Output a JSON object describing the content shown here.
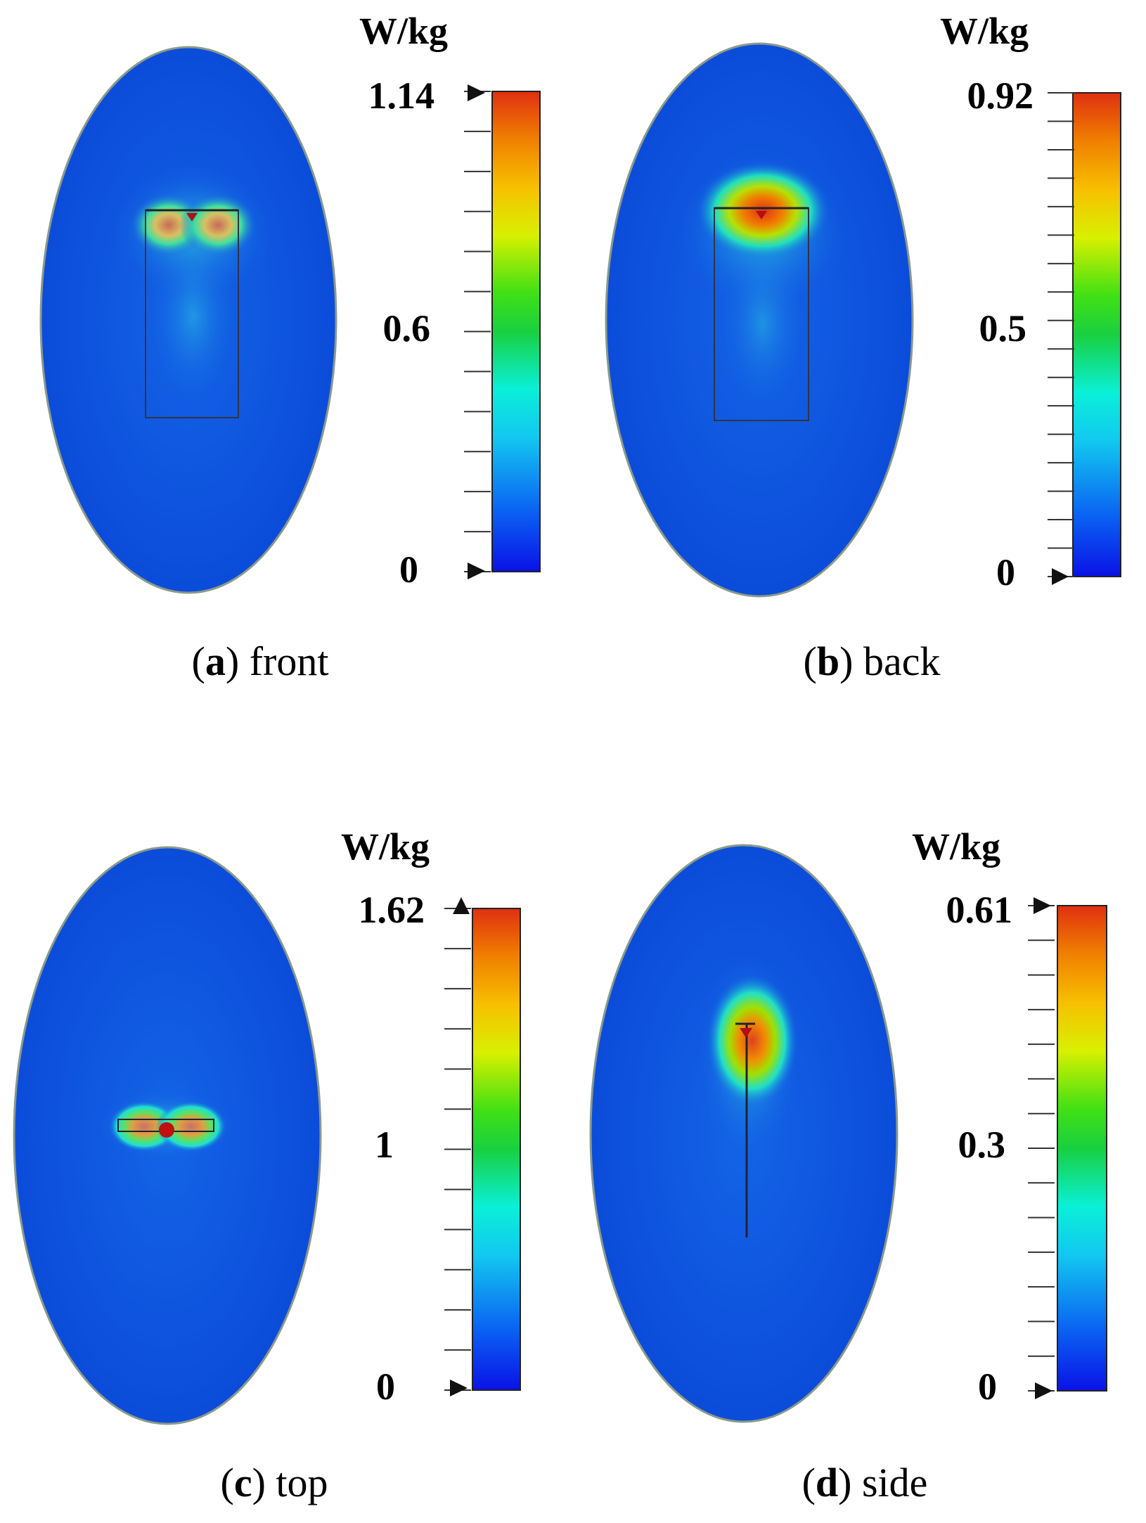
{
  "panels": [
    {
      "id": "a",
      "letter": "a",
      "view": "front",
      "unit": "W/kg",
      "scale_max_label": "1.14",
      "scale_mid_label": "0.6",
      "scale_min_label": "0",
      "scale_max": 1.14,
      "scale_mid": 0.6,
      "scale_min": 0
    },
    {
      "id": "b",
      "letter": "b",
      "view": "back",
      "unit": "W/kg",
      "scale_max_label": "0.92",
      "scale_mid_label": "0.5",
      "scale_min_label": "0",
      "scale_max": 0.92,
      "scale_mid": 0.5,
      "scale_min": 0
    },
    {
      "id": "c",
      "letter": "c",
      "view": "top",
      "unit": "W/kg",
      "scale_max_label": "1.62",
      "scale_mid_label": "1",
      "scale_min_label": "0",
      "scale_max": 1.62,
      "scale_mid": 1,
      "scale_min": 0
    },
    {
      "id": "d",
      "letter": "d",
      "view": "side",
      "unit": "W/kg",
      "scale_max_label": "0.61",
      "scale_mid_label": "0.3",
      "scale_min_label": "0",
      "scale_max": 0.61,
      "scale_mid": 0.3,
      "scale_min": 0
    }
  ],
  "colors": {
    "phantom_fill": "#0b4fe0",
    "phantom_edge": "#8a9a8a",
    "hot": "#e0301a",
    "colormap": [
      "#0a12e6",
      "#0a5ef2",
      "#12c8f0",
      "#0af0e0",
      "#18d040",
      "#34e01a",
      "#d8f000",
      "#f7c000",
      "#f08000",
      "#e03010"
    ]
  }
}
